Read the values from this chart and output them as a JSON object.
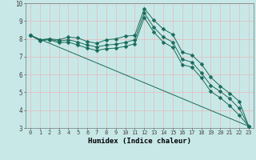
{
  "xlabel": "Humidex (Indice chaleur)",
  "background_color": "#c8e8e8",
  "grid_color": "#e8b8b8",
  "line_color": "#1a6b5a",
  "xlim": [
    -0.5,
    23.5
  ],
  "ylim": [
    3,
    10
  ],
  "yticks": [
    3,
    4,
    5,
    6,
    7,
    8,
    9,
    10
  ],
  "xticks": [
    0,
    1,
    2,
    3,
    4,
    5,
    6,
    7,
    8,
    9,
    10,
    11,
    12,
    13,
    14,
    15,
    16,
    17,
    18,
    19,
    20,
    21,
    22,
    23
  ],
  "lines": [
    {
      "x": [
        0,
        1,
        2,
        3,
        4,
        5,
        6,
        7,
        8,
        9,
        10,
        11,
        12,
        13,
        14,
        15,
        16,
        17,
        18,
        19,
        20,
        21,
        22,
        23
      ],
      "y": [
        8.2,
        7.95,
        8.0,
        7.95,
        8.1,
        8.05,
        7.85,
        7.75,
        7.95,
        8.0,
        8.15,
        8.2,
        9.7,
        9.05,
        8.55,
        8.25,
        7.25,
        7.1,
        6.6,
        5.85,
        5.35,
        4.95,
        4.5,
        3.1
      ],
      "marker": "D",
      "markersize": 2.5
    },
    {
      "x": [
        0,
        1,
        2,
        3,
        4,
        5,
        6,
        7,
        8,
        9,
        10,
        11,
        12,
        13,
        14,
        15,
        16,
        17,
        18,
        19,
        20,
        21,
        22,
        23
      ],
      "y": [
        8.2,
        7.95,
        7.98,
        7.87,
        7.95,
        7.82,
        7.65,
        7.55,
        7.65,
        7.7,
        7.8,
        7.95,
        9.45,
        8.65,
        8.1,
        7.82,
        6.85,
        6.7,
        6.1,
        5.4,
        5.05,
        4.65,
        4.1,
        3.1
      ],
      "marker": "D",
      "markersize": 2.5
    },
    {
      "x": [
        0,
        1,
        2,
        3,
        4,
        5,
        6,
        7,
        8,
        9,
        10,
        11,
        12,
        13,
        14,
        15,
        16,
        17,
        18,
        19,
        20,
        21,
        22,
        23
      ],
      "y": [
        8.2,
        7.9,
        7.95,
        7.78,
        7.82,
        7.65,
        7.48,
        7.35,
        7.45,
        7.48,
        7.58,
        7.72,
        9.2,
        8.38,
        7.82,
        7.52,
        6.55,
        6.42,
        5.82,
        5.05,
        4.7,
        4.25,
        3.72,
        3.1
      ],
      "marker": "D",
      "markersize": 2.5
    },
    {
      "x": [
        0,
        23
      ],
      "y": [
        8.2,
        3.1
      ],
      "marker": null,
      "markersize": 0
    }
  ]
}
